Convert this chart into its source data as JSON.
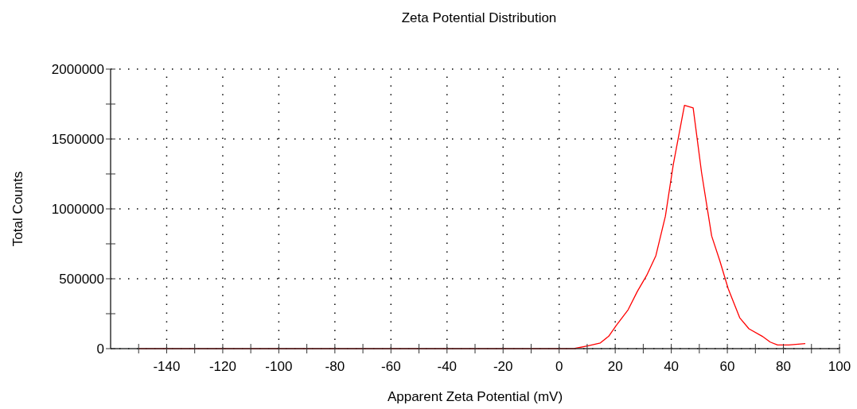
{
  "chart_data": {
    "type": "line",
    "title": "Zeta Potential Distribution",
    "xlabel": "Apparent Zeta Potential (mV)",
    "ylabel": "Total Counts",
    "x": [
      -150,
      5.2,
      10.4,
      14.7,
      17.7,
      20.3,
      24.6,
      27.9,
      31.2,
      34.5,
      37.9,
      40.7,
      44.7,
      47.8,
      50.8,
      54.4,
      57.3,
      60.3,
      64.4,
      67.7,
      72.4,
      75.3,
      77.9,
      81.9,
      87.8
    ],
    "series": [
      {
        "color": "#ff0000",
        "values": [
          0,
          0,
          20000,
          41000,
          89000,
          164000,
          278000,
          410000,
          523000,
          665000,
          948000,
          1316000,
          1741000,
          1722000,
          1260000,
          806000,
          629000,
          429000,
          221000,
          142000,
          89000,
          47000,
          26000,
          26000,
          36000
        ]
      }
    ],
    "xlim": [
      -160,
      100
    ],
    "xticks": [
      {
        "value": -150,
        "label": null
      },
      -140,
      {
        "value": -130,
        "label": null
      },
      -120,
      {
        "value": -110,
        "label": null
      },
      -100,
      {
        "value": -90,
        "label": null
      },
      -80,
      {
        "value": -70,
        "label": null
      },
      -60,
      {
        "value": -50,
        "label": null
      },
      -40,
      {
        "value": -30,
        "label": null
      },
      -20,
      {
        "value": -10,
        "label": null
      },
      0,
      {
        "value": 10,
        "label": null
      },
      20,
      {
        "value": 30,
        "label": null
      },
      40,
      {
        "value": 50,
        "label": null
      },
      60,
      {
        "value": 70,
        "label": null
      },
      80,
      {
        "value": 90,
        "label": null
      },
      100
    ],
    "ylim": [
      0,
      2000000
    ],
    "yticks": [
      0,
      {
        "value": 250000,
        "label": null
      },
      500000,
      {
        "value": 750000,
        "label": null
      },
      1000000,
      {
        "value": 1250000,
        "label": null
      },
      1500000,
      {
        "value": 1750000,
        "label": null
      },
      2000000
    ],
    "grid": true
  }
}
